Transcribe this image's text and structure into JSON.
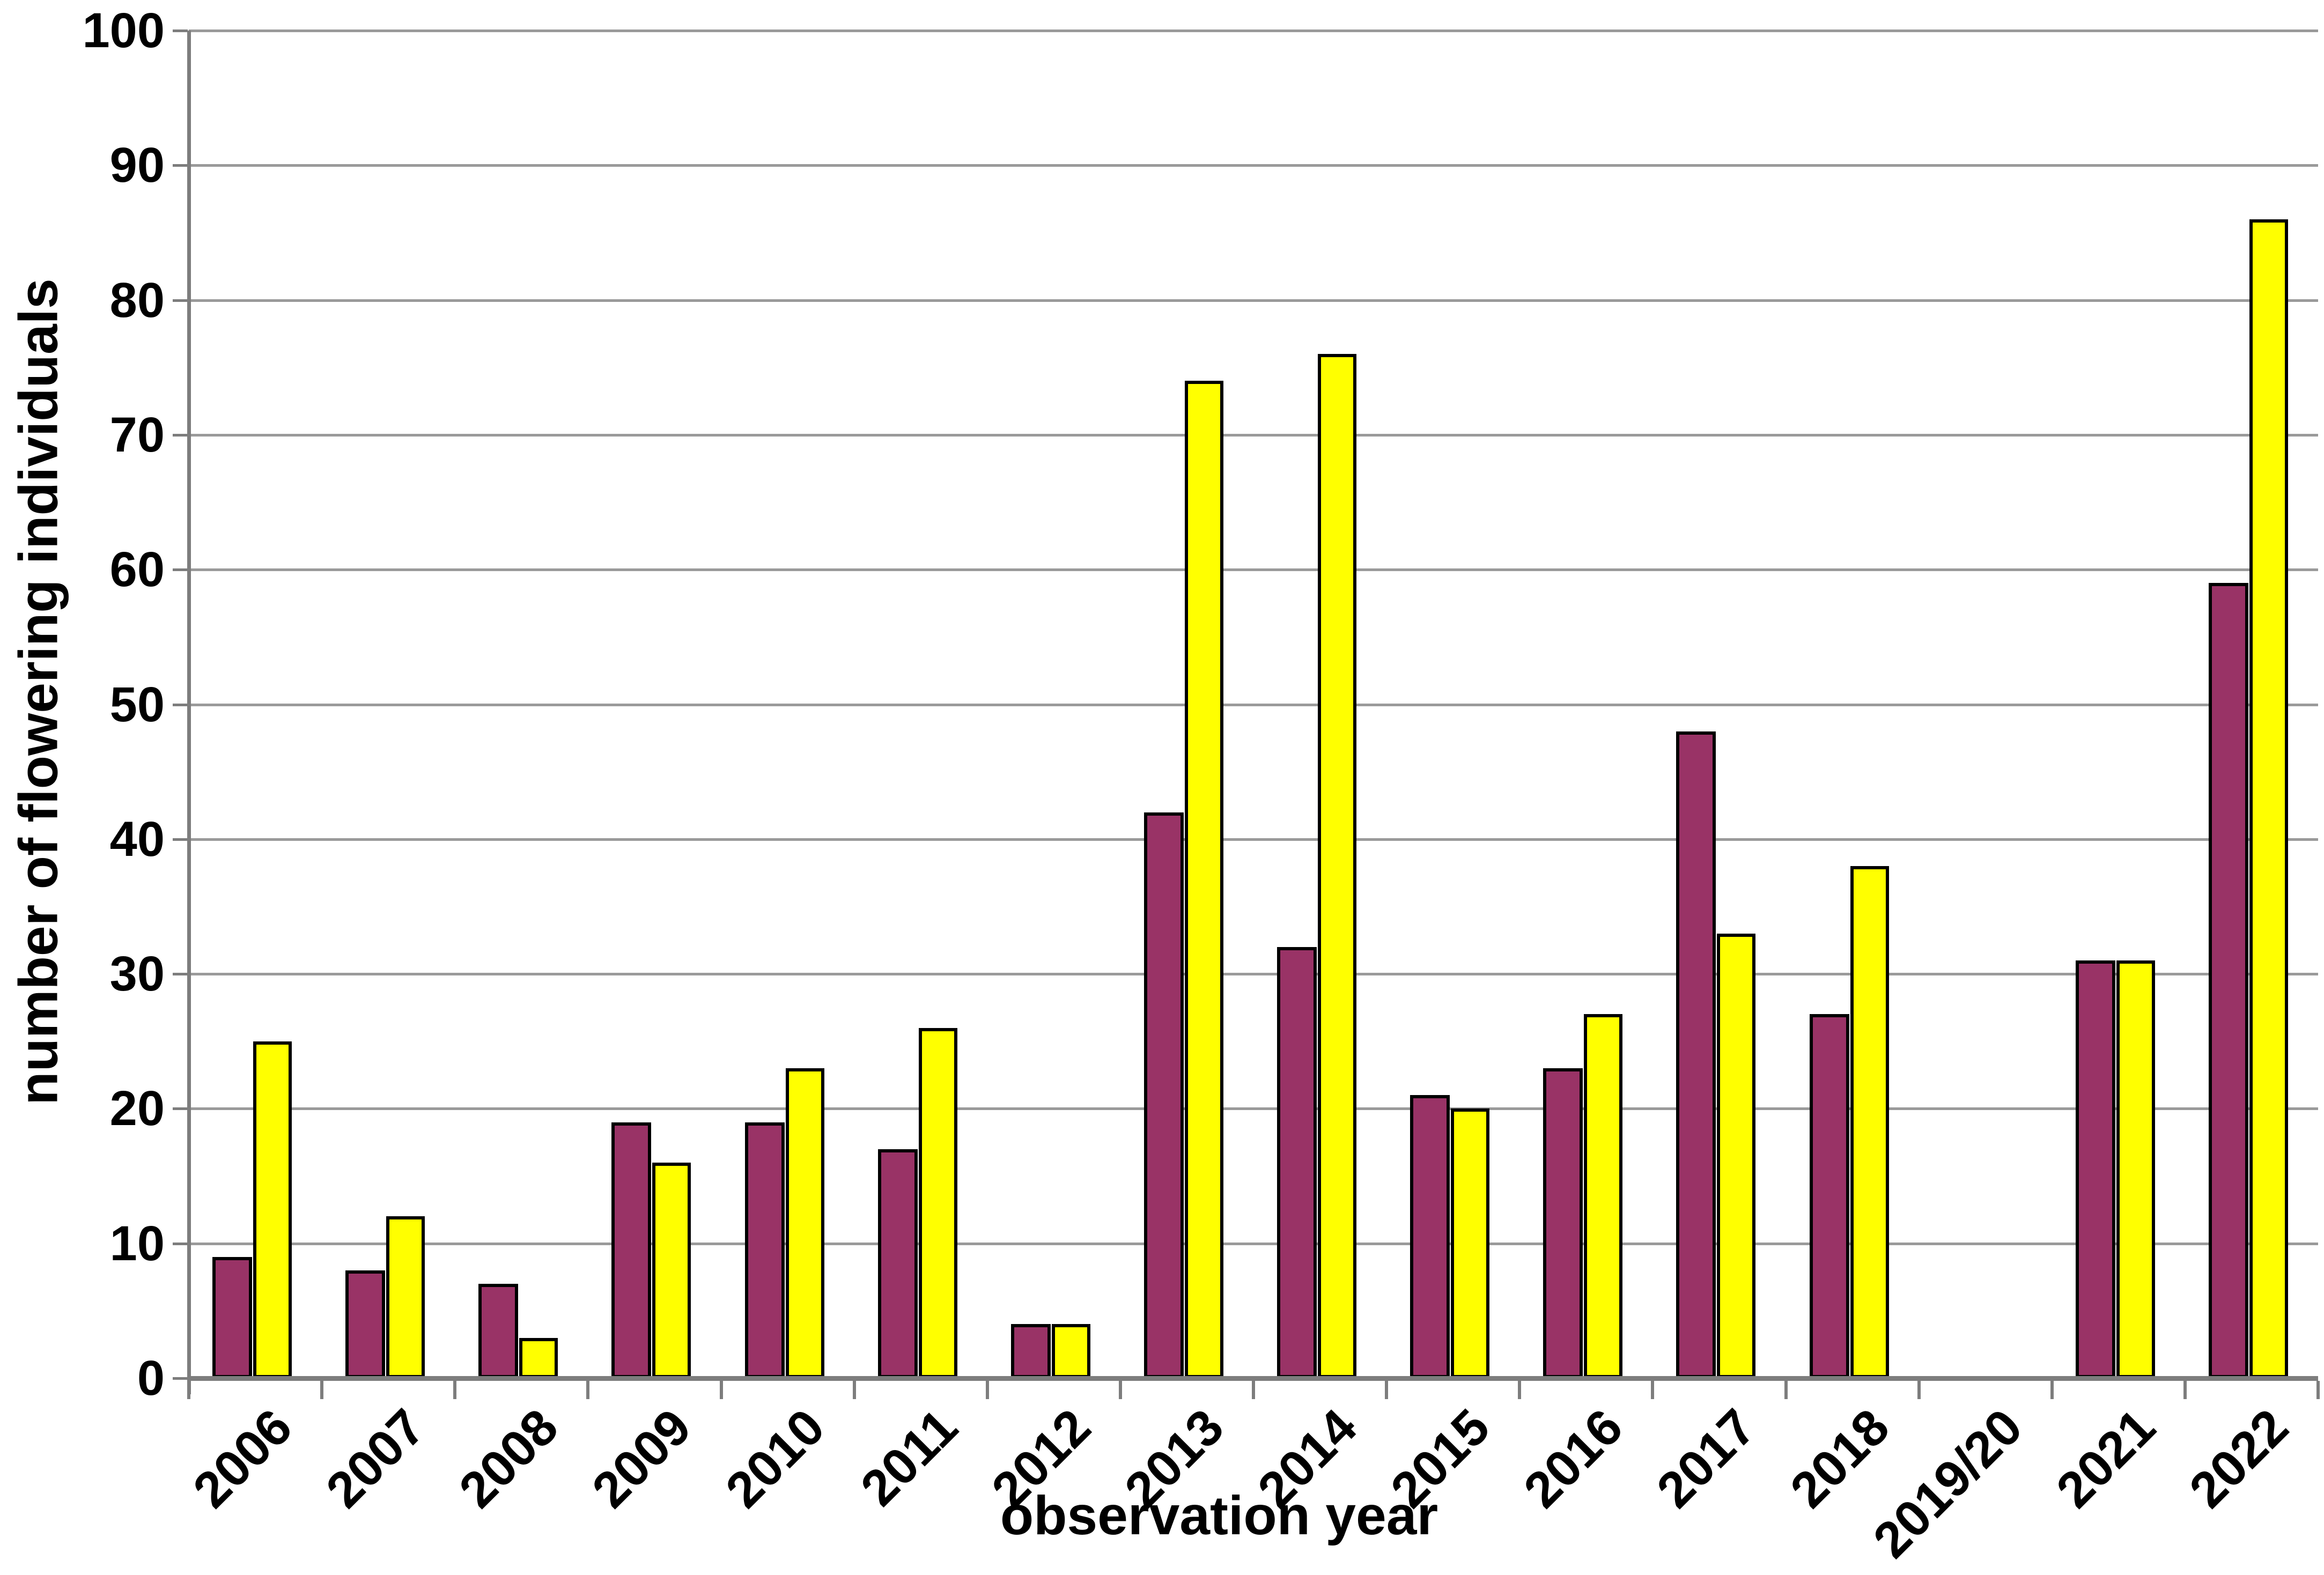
{
  "chart_data": {
    "type": "bar",
    "title": "",
    "xlabel": "observation year",
    "ylabel": "number of flowering individuals",
    "categories": [
      "2006",
      "2007",
      "2008",
      "2009",
      "2010",
      "2011",
      "2012",
      "2013",
      "2014",
      "2015",
      "2016",
      "2017",
      "2018",
      "2019/20",
      "2021",
      "2022"
    ],
    "series": [
      {
        "name": "magenta-series",
        "color": "#993366",
        "values": [
          9,
          8,
          7,
          19,
          19,
          17,
          4,
          42,
          32,
          21,
          23,
          48,
          27,
          null,
          31,
          59
        ]
      },
      {
        "name": "yellow-series",
        "color": "#FFFF00",
        "values": [
          25,
          12,
          3,
          16,
          23,
          26,
          4,
          74,
          76,
          20,
          27,
          33,
          38,
          null,
          31,
          86
        ]
      }
    ],
    "ylim": [
      0,
      100
    ],
    "ytick_interval": 10,
    "ytick_labels": [
      "0",
      "10",
      "20",
      "30",
      "40",
      "50",
      "60",
      "70",
      "80",
      "90",
      "100"
    ],
    "grid": true,
    "legend": "none",
    "colors": {
      "gridline": "#9a9a9a",
      "axis": "#7d7d7d",
      "bar_border": "#000000",
      "background": "#ffffff",
      "text": "#000000"
    }
  }
}
